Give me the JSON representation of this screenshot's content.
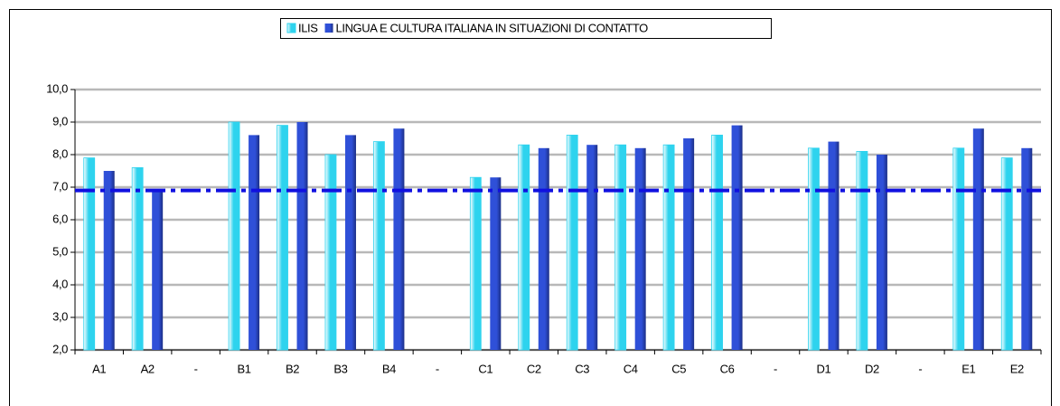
{
  "chart_data": {
    "type": "bar",
    "categories": [
      "A1",
      "A2",
      "-",
      "B1",
      "B2",
      "B3",
      "B4",
      "-",
      "C1",
      "C2",
      "C3",
      "C4",
      "C5",
      "C6",
      "-",
      "D1",
      "D2",
      "-",
      "E1",
      "E2"
    ],
    "series": [
      {
        "name": "ILIS",
        "color": "#2ed3ee",
        "values": [
          7.9,
          7.6,
          null,
          9.0,
          8.9,
          8.0,
          8.4,
          null,
          7.3,
          8.3,
          8.6,
          8.3,
          8.3,
          8.6,
          null,
          8.2,
          8.1,
          null,
          8.2,
          7.9
        ]
      },
      {
        "name": "LINGUA E CULTURA ITALIANA IN SITUAZIONI DI CONTATTO",
        "color": "#2f50d8",
        "values": [
          7.5,
          6.9,
          null,
          8.6,
          9.0,
          8.6,
          8.8,
          null,
          7.3,
          8.2,
          8.3,
          8.2,
          8.5,
          8.9,
          null,
          8.4,
          8.0,
          null,
          8.8,
          8.2
        ]
      }
    ],
    "reference_line": {
      "value": 6.9,
      "color": "#1010e0"
    },
    "ylim": [
      2,
      10
    ],
    "yticks": [
      {
        "value": 2,
        "label": "2,0"
      },
      {
        "value": 3,
        "label": "3,0"
      },
      {
        "value": 4,
        "label": "4,0"
      },
      {
        "value": 5,
        "label": "5,0"
      },
      {
        "value": 6,
        "label": "6,0"
      },
      {
        "value": 7,
        "label": "7,0"
      },
      {
        "value": 8,
        "label": "8,0"
      },
      {
        "value": 9,
        "label": "9,0"
      },
      {
        "value": 10,
        "label": "10,0"
      }
    ],
    "grid": true,
    "legend": "top"
  }
}
